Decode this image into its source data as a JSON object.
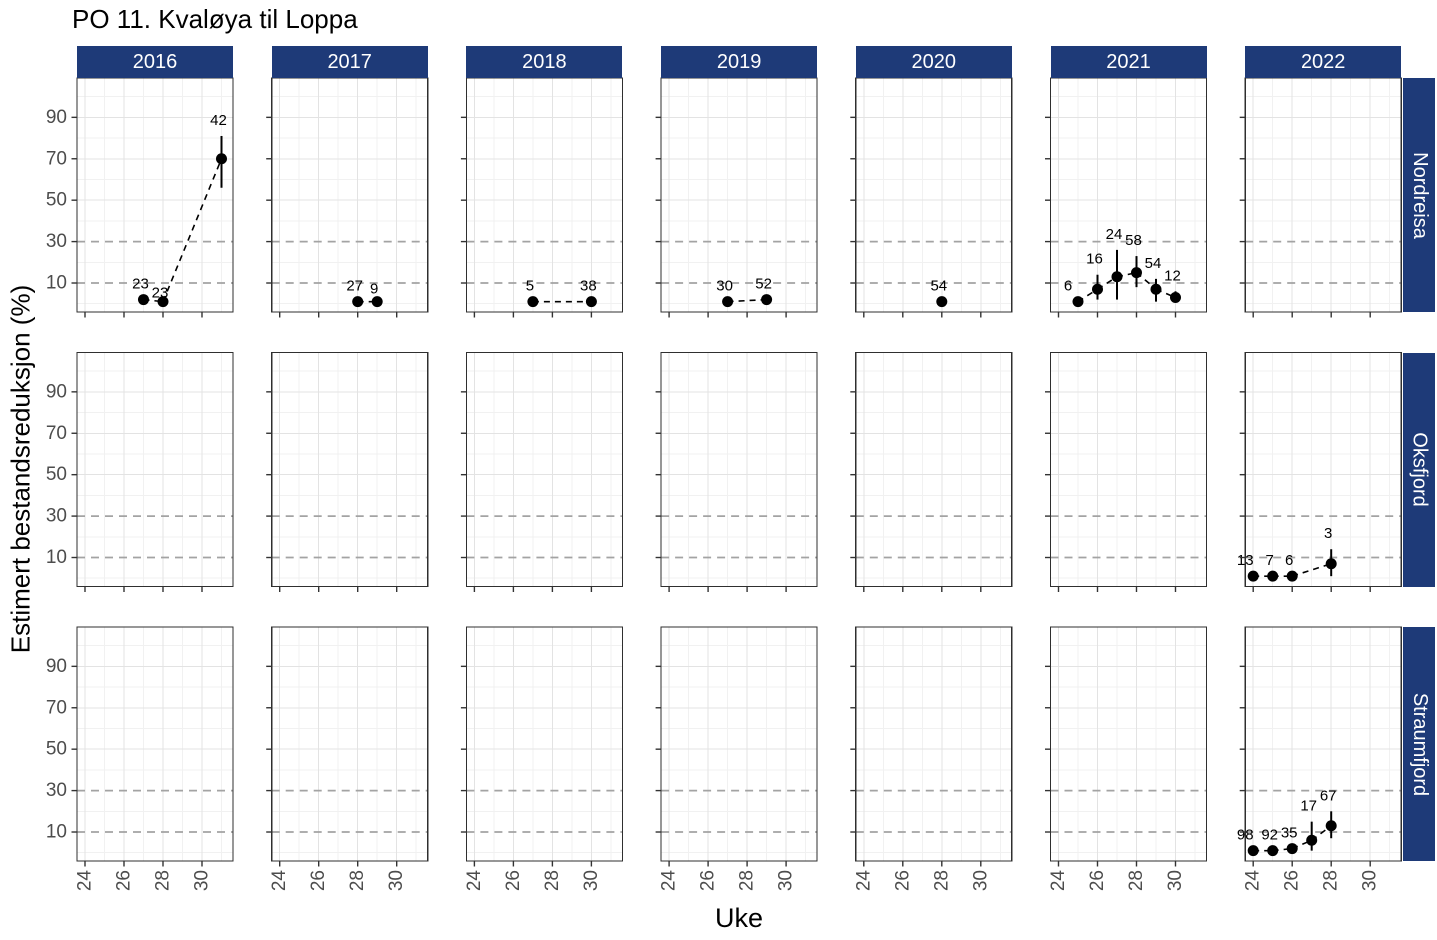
{
  "title": "PO 11. Kvaløya til Loppa",
  "axes": {
    "x_label": "Uke",
    "y_label": "Estimert bestandsreduksjon (%)",
    "x_ticks": [
      24,
      26,
      28,
      30
    ],
    "y_ticks": [
      90,
      70,
      50,
      30,
      10
    ]
  },
  "facets": {
    "columns": [
      "2016",
      "2017",
      "2018",
      "2019",
      "2020",
      "2021",
      "2022"
    ],
    "rows": [
      "Nordreisa",
      "Oksfjord",
      "Straumfjord"
    ]
  },
  "colors": {
    "strip_bg": "#1e3a78",
    "strip_text": "#ffffff",
    "panel_bg": "#ffffff",
    "panel_border": "#2f2f2f",
    "grid_major": "#e3e3e3",
    "grid_minor": "#f1f1f1",
    "ref_line": "#a3a3a3",
    "axis_text": "#4d4d4d",
    "tick_mark": "#333333",
    "point": "#000000",
    "label_text": "#000000"
  },
  "chart_data": {
    "type": "scatter",
    "title": "PO 11. Kvaløya til Loppa",
    "xlabel": "Uke",
    "ylabel": "Estimert bestandsreduksjon (%)",
    "x_range": [
      23.59,
      31.59
    ],
    "y_range": [
      -4,
      109
    ],
    "x_ticks": [
      24,
      26,
      28,
      30
    ],
    "y_ticks": [
      10,
      30,
      50,
      70,
      90
    ],
    "grid_minor_x": [
      25,
      27,
      29,
      31
    ],
    "grid_major_x": [
      24,
      26,
      28,
      30
    ],
    "grid_minor_y": [
      0,
      20,
      40,
      60,
      80,
      100
    ],
    "grid_major_y": [
      50,
      70,
      90
    ],
    "ref_lines_y": [
      10,
      30
    ],
    "facet_columns": [
      "2016",
      "2017",
      "2018",
      "2019",
      "2020",
      "2021",
      "2022"
    ],
    "facet_rows": [
      "Nordreisa",
      "Oksfjord",
      "Straumfjord"
    ],
    "series": [
      {
        "row": "Nordreisa",
        "year": "2016",
        "points": [
          {
            "week": 27,
            "value": 2,
            "label": "23"
          },
          {
            "week": 28,
            "value": 1,
            "label": "23",
            "label_dy": 7
          },
          {
            "week": 31,
            "value": 70,
            "label": "42",
            "lo": 56,
            "hi": 81
          }
        ]
      },
      {
        "row": "Nordreisa",
        "year": "2017",
        "points": [
          {
            "week": 28,
            "value": 1,
            "label": "27"
          },
          {
            "week": 29,
            "value": 1,
            "label": "9",
            "label_dy": 3
          }
        ]
      },
      {
        "row": "Nordreisa",
        "year": "2018",
        "points": [
          {
            "week": 27,
            "value": 1,
            "label": "5"
          },
          {
            "week": 30,
            "value": 1,
            "label": "38"
          }
        ]
      },
      {
        "row": "Nordreisa",
        "year": "2019",
        "points": [
          {
            "week": 27,
            "value": 1,
            "label": "30"
          },
          {
            "week": 29,
            "value": 2,
            "label": "52"
          }
        ]
      },
      {
        "row": "Nordreisa",
        "year": "2020",
        "points": [
          {
            "week": 28,
            "value": 1,
            "label": "54"
          }
        ]
      },
      {
        "row": "Nordreisa",
        "year": "2021",
        "points": [
          {
            "week": 25,
            "value": 1,
            "label": "6",
            "label_dx": -7
          },
          {
            "week": 26,
            "value": 7,
            "label": "16",
            "lo": 2,
            "hi": 14
          },
          {
            "week": 27,
            "value": 13,
            "label": "24",
            "lo": 2,
            "hi": 26
          },
          {
            "week": 28,
            "value": 15,
            "label": "58",
            "lo": 8,
            "hi": 23
          },
          {
            "week": 29,
            "value": 7,
            "label": "54",
            "lo": 1,
            "hi": 12
          },
          {
            "week": 30,
            "value": 3,
            "label": "12",
            "lo": 1,
            "hi": 6
          }
        ]
      },
      {
        "row": "Oksfjord",
        "year": "2022",
        "points": [
          {
            "week": 24,
            "value": 1,
            "label": "13",
            "label_dx": -5
          },
          {
            "week": 25,
            "value": 1,
            "label": "7"
          },
          {
            "week": 26,
            "value": 1,
            "label": "6"
          },
          {
            "week": 28,
            "value": 7,
            "label": "3",
            "lo": 1,
            "hi": 14
          }
        ]
      },
      {
        "row": "Straumfjord",
        "year": "2022",
        "points": [
          {
            "week": 24,
            "value": 1,
            "label": "98",
            "label_dx": -5
          },
          {
            "week": 25,
            "value": 1,
            "label": "92"
          },
          {
            "week": 26,
            "value": 2,
            "label": "35"
          },
          {
            "week": 27,
            "value": 6,
            "label": "17",
            "lo": 1,
            "hi": 15
          },
          {
            "week": 28,
            "value": 13,
            "label": "67",
            "lo": 7,
            "hi": 20
          }
        ]
      }
    ]
  }
}
